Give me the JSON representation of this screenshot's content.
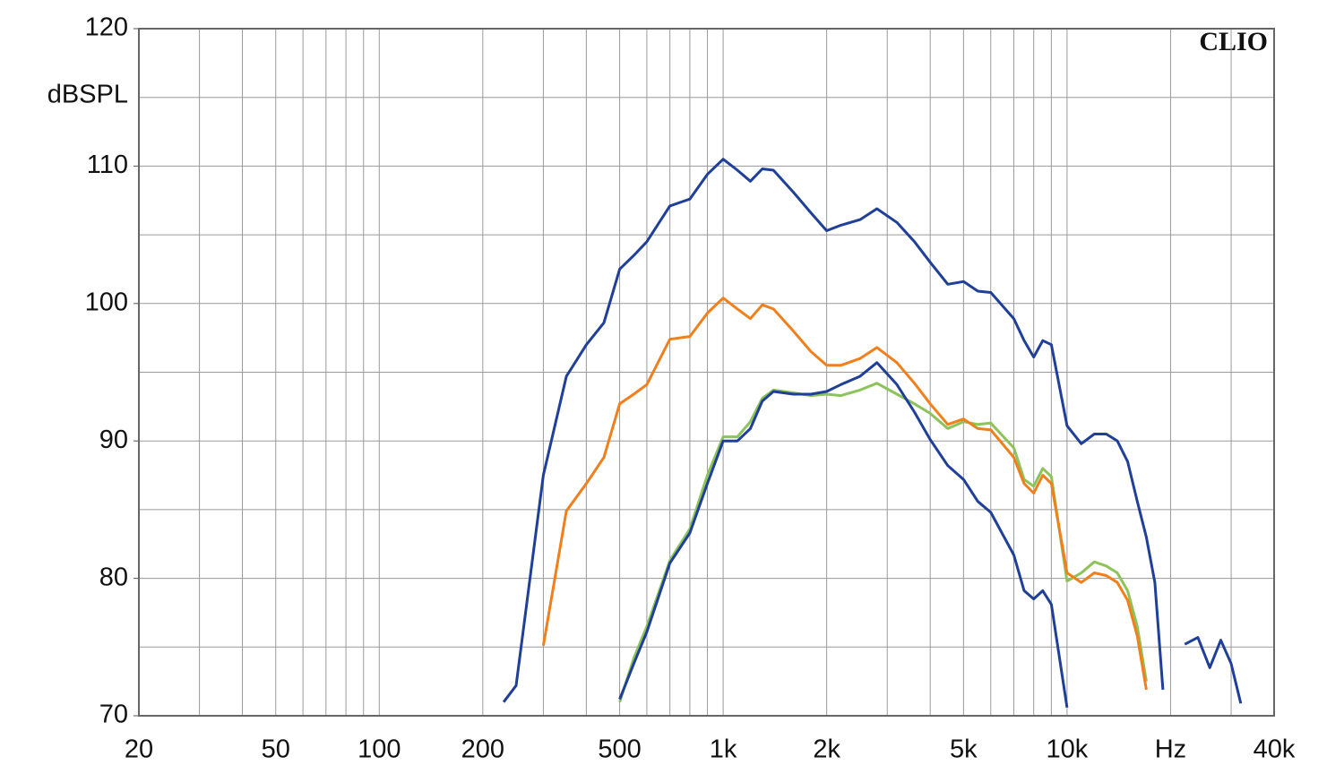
{
  "chart_data": {
    "type": "line",
    "y_label": "dBSPL",
    "watermark": "CLIO",
    "xscale": "log",
    "grid": true,
    "xlim": [
      20,
      40000
    ],
    "ylim": [
      70,
      120
    ],
    "xticks": [
      20,
      50,
      100,
      200,
      500,
      {
        "value": 1000,
        "label": "1k"
      },
      {
        "value": 2000,
        "label": "2k"
      },
      {
        "value": 5000,
        "label": "5k"
      },
      {
        "value": 10000,
        "label": "10k"
      },
      {
        "value": 20000,
        "label": "Hz"
      },
      {
        "value": 40000,
        "label": "40k"
      }
    ],
    "x_minor_ticks": [
      30,
      40,
      60,
      70,
      80,
      90,
      300,
      400,
      600,
      700,
      800,
      900,
      3000,
      4000,
      6000,
      7000,
      8000,
      9000,
      30000
    ],
    "yticks": [
      70,
      80,
      90,
      100,
      110,
      120
    ],
    "y_minor_ticks": [
      75,
      85,
      95,
      105,
      115
    ],
    "x": [
      230,
      250,
      280,
      300,
      350,
      400,
      450,
      500,
      550,
      600,
      700,
      800,
      900,
      1000,
      1100,
      1200,
      1300,
      1400,
      1600,
      1800,
      2000,
      2200,
      2500,
      2800,
      3200,
      3600,
      4000,
      4500,
      5000,
      5500,
      6000,
      7000,
      7500,
      8000,
      8500,
      9000,
      10000,
      11000,
      12000,
      13000,
      14000,
      15000,
      16000,
      17000,
      18000,
      19000,
      20000,
      22000,
      24000,
      26000,
      28000,
      30000,
      32000
    ],
    "series": [
      {
        "color": "#8cc35a",
        "values": [
          null,
          null,
          null,
          null,
          null,
          null,
          null,
          71.0,
          74.2,
          76.5,
          81.3,
          83.6,
          87.5,
          90.3,
          90.3,
          91.4,
          93.1,
          93.7,
          93.5,
          93.3,
          93.4,
          93.3,
          93.7,
          94.2,
          93.4,
          92.7,
          92.0,
          90.9,
          91.4,
          91.2,
          91.3,
          89.5,
          87.2,
          86.7,
          88.0,
          87.4,
          79.8,
          80.4,
          81.2,
          80.9,
          80.4,
          79.1,
          76.5,
          72.5,
          null,
          null,
          null,
          null,
          null,
          null,
          null,
          null,
          null
        ]
      },
      {
        "color": "#1f3f99",
        "values": [
          null,
          null,
          null,
          null,
          null,
          null,
          null,
          71.2,
          73.8,
          76.1,
          81.1,
          83.3,
          86.9,
          90.0,
          90.0,
          90.9,
          92.9,
          93.6,
          93.4,
          93.4,
          93.6,
          94.1,
          94.7,
          95.7,
          94.1,
          92.1,
          90.1,
          88.2,
          87.2,
          85.6,
          84.8,
          81.7,
          79.1,
          78.5,
          79.1,
          78.1,
          70.6,
          null,
          null,
          null,
          null,
          null,
          null,
          null,
          null,
          null,
          null,
          null,
          null,
          null,
          null,
          null,
          null
        ]
      },
      {
        "color": "#f07f1c",
        "values": [
          null,
          null,
          null,
          75.1,
          84.9,
          86.9,
          88.8,
          92.7,
          93.4,
          94.1,
          97.4,
          97.6,
          99.3,
          100.4,
          99.6,
          98.9,
          99.9,
          99.6,
          98.0,
          96.5,
          95.5,
          95.5,
          96.0,
          96.8,
          95.7,
          94.2,
          92.7,
          91.2,
          91.6,
          90.9,
          90.8,
          88.8,
          86.9,
          86.2,
          87.5,
          86.9,
          80.4,
          79.7,
          80.4,
          80.2,
          79.7,
          78.4,
          75.8,
          71.9,
          null,
          null,
          null,
          null,
          null,
          null,
          null,
          null,
          null
        ]
      },
      {
        "color": "#1f3f99",
        "values": [
          71,
          72.2,
          81.7,
          87.5,
          94.7,
          97.0,
          98.6,
          102.5,
          103.5,
          104.5,
          107.1,
          107.6,
          109.4,
          110.5,
          109.7,
          108.9,
          109.8,
          109.7,
          108.1,
          106.6,
          105.3,
          105.7,
          106.1,
          106.9,
          105.9,
          104.5,
          103.0,
          101.4,
          101.6,
          100.9,
          100.8,
          98.9,
          97.3,
          96.1,
          97.3,
          97.0,
          91.1,
          89.8,
          90.5,
          90.5,
          90.0,
          88.5,
          85.6,
          83.0,
          79.7,
          71.9,
          null,
          75.2,
          75.7,
          73.5,
          75.5,
          73.8,
          70.9
        ]
      }
    ]
  }
}
